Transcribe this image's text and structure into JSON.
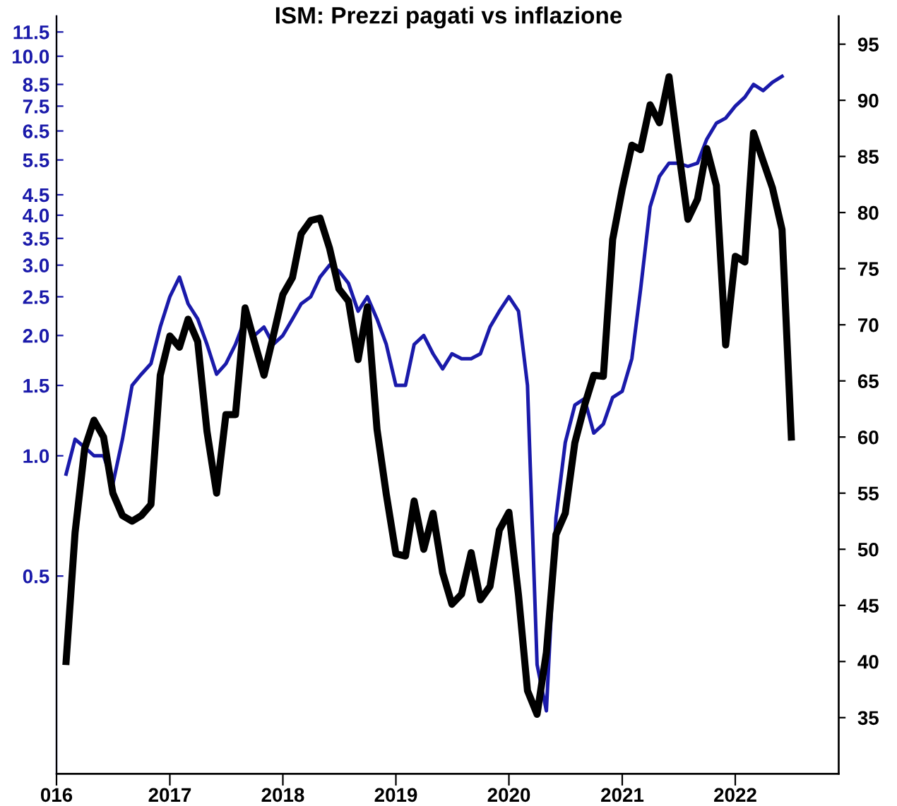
{
  "chart_data": {
    "type": "line",
    "title": "ISM: Prezzi pagati vs inflazione",
    "xlim": [
      "2016-01",
      "2022-12"
    ],
    "xticks": [
      {
        "value": "2016-01",
        "label": "016"
      },
      {
        "value": "2017-01",
        "label": "2017"
      },
      {
        "value": "2018-01",
        "label": "2018"
      },
      {
        "value": "2019-01",
        "label": "2019"
      },
      {
        "value": "2020-01",
        "label": "2020"
      },
      {
        "value": "2021-01",
        "label": "2021"
      },
      {
        "value": "2022-01",
        "label": "2022"
      }
    ],
    "log": "y",
    "ylim": [
      0.16,
      12.6
    ],
    "yticks": [
      {
        "value": 11.5,
        "label": "11.5"
      },
      {
        "value": 10,
        "label": "10.0"
      },
      {
        "value": 8.5,
        "label": "8.5"
      },
      {
        "value": 7.5,
        "label": "7.5"
      },
      {
        "value": 6.5,
        "label": "6.5"
      },
      {
        "value": 5.5,
        "label": "5.5"
      },
      {
        "value": 4.5,
        "label": "4.5"
      },
      {
        "value": 4,
        "label": "4.0"
      },
      {
        "value": 3.5,
        "label": "3.5"
      },
      {
        "value": 3,
        "label": "3.0"
      },
      {
        "value": 2.5,
        "label": "2.5"
      },
      {
        "value": 2,
        "label": "2.0"
      },
      {
        "value": 1.5,
        "label": "1.5"
      },
      {
        "value": 1,
        "label": "1.0"
      },
      {
        "value": 0.5,
        "label": "0.5"
      }
    ],
    "y2lim": [
      30,
      97.5
    ],
    "y2ticks": [
      95,
      90,
      85,
      80,
      75,
      70,
      65,
      60,
      55,
      50,
      45,
      40,
      35
    ],
    "grid": false,
    "legend": false,
    "marker": "none",
    "line_style": "solid",
    "series": [
      {
        "color": "#1a1aaa",
        "x": [
          "2016-02",
          "2016-03",
          "2016-04",
          "2016-05",
          "2016-06",
          "2016-07",
          "2016-08",
          "2016-09",
          "2016-10",
          "2016-11",
          "2016-12",
          "2017-01",
          "2017-02",
          "2017-03",
          "2017-04",
          "2017-05",
          "2017-06",
          "2017-07",
          "2017-08",
          "2017-09",
          "2017-10",
          "2017-11",
          "2017-12",
          "2018-01",
          "2018-02",
          "2018-03",
          "2018-04",
          "2018-05",
          "2018-06",
          "2018-07",
          "2018-08",
          "2018-09",
          "2018-10",
          "2018-11",
          "2018-12",
          "2019-01",
          "2019-02",
          "2019-03",
          "2019-04",
          "2019-05",
          "2019-06",
          "2019-07",
          "2019-08",
          "2019-09",
          "2019-10",
          "2019-11",
          "2019-12",
          "2020-01",
          "2020-02",
          "2020-03",
          "2020-04",
          "2020-05",
          "2020-06",
          "2020-07",
          "2020-08",
          "2020-09",
          "2020-10",
          "2020-11",
          "2020-12",
          "2021-01",
          "2021-02",
          "2021-03",
          "2021-04",
          "2021-05",
          "2021-06",
          "2021-07",
          "2021-08",
          "2021-09",
          "2021-10",
          "2021-11",
          "2021-12",
          "2022-01",
          "2022-02",
          "2022-03",
          "2022-04",
          "2022-05",
          "2022-06"
        ],
        "values": [
          0.9,
          1.1,
          1.05,
          1.0,
          1.0,
          0.85,
          1.1,
          1.5,
          1.6,
          1.7,
          2.1,
          2.5,
          2.8,
          2.4,
          2.2,
          1.9,
          1.6,
          1.7,
          1.9,
          2.2,
          2.0,
          2.1,
          1.9,
          2.0,
          2.2,
          2.4,
          2.5,
          2.8,
          3.0,
          2.9,
          2.7,
          2.3,
          2.5,
          2.2,
          1.9,
          1.5,
          1.5,
          1.9,
          2.0,
          1.8,
          1.65,
          1.8,
          1.75,
          1.75,
          1.8,
          2.1,
          2.3,
          2.5,
          2.3,
          1.5,
          0.3,
          0.23,
          0.7,
          1.08,
          1.34,
          1.39,
          1.14,
          1.2,
          1.4,
          1.45,
          1.75,
          2.6,
          4.2,
          5.0,
          5.4,
          5.4,
          5.3,
          5.4,
          6.2,
          6.8,
          7.0,
          7.5,
          7.9,
          8.5,
          8.2,
          8.6,
          8.9
        ]
      },
      {
        "color": "#000000",
        "axis": "y2",
        "x": [
          "2016-02",
          "2016-03",
          "2016-04",
          "2016-05",
          "2016-06",
          "2016-07",
          "2016-08",
          "2016-09",
          "2016-10",
          "2016-11",
          "2016-12",
          "2017-01",
          "2017-02",
          "2017-03",
          "2017-04",
          "2017-05",
          "2017-06",
          "2017-07",
          "2017-08",
          "2017-09",
          "2017-10",
          "2017-11",
          "2017-12",
          "2018-01",
          "2018-02",
          "2018-03",
          "2018-04",
          "2018-05",
          "2018-06",
          "2018-07",
          "2018-08",
          "2018-09",
          "2018-10",
          "2018-11",
          "2018-12",
          "2019-01",
          "2019-02",
          "2019-03",
          "2019-04",
          "2019-05",
          "2019-06",
          "2019-07",
          "2019-08",
          "2019-09",
          "2019-10",
          "2019-11",
          "2019-12",
          "2020-01",
          "2020-02",
          "2020-03",
          "2020-04",
          "2020-05",
          "2020-06",
          "2020-07",
          "2020-08",
          "2020-09",
          "2020-10",
          "2020-11",
          "2020-12",
          "2021-01",
          "2021-02",
          "2021-03",
          "2021-04",
          "2021-05",
          "2021-06",
          "2021-07",
          "2021-08",
          "2021-09",
          "2021-10",
          "2021-11",
          "2021-12",
          "2022-01",
          "2022-02",
          "2022-03",
          "2022-04",
          "2022-05",
          "2022-06",
          "2022-07"
        ],
        "values": [
          40,
          51.5,
          59,
          61.5,
          60,
          55,
          53,
          52.5,
          53,
          54,
          65.5,
          69,
          68,
          70.5,
          68.5,
          60.5,
          55,
          62,
          62,
          71.5,
          68.5,
          65.5,
          69,
          72.7,
          74.2,
          78.1,
          79.3,
          79.5,
          76.8,
          73.2,
          72.1,
          66.9,
          71.6,
          60.7,
          54.9,
          49.6,
          49.4,
          54.3,
          50,
          53.2,
          47.9,
          45.1,
          46,
          49.7,
          45.5,
          46.7,
          51.7,
          53.3,
          45.9,
          37.4,
          35.3,
          40.8,
          51.3,
          53.2,
          59.5,
          62.8,
          65.5,
          65.4,
          77.6,
          82.1,
          86,
          85.6,
          89.6,
          88,
          92.1,
          85.7,
          79.4,
          81.2,
          85.7,
          82.4,
          68.2,
          76.1,
          75.6,
          87.1,
          84.6,
          82.2,
          78.5,
          60
        ]
      }
    ]
  }
}
